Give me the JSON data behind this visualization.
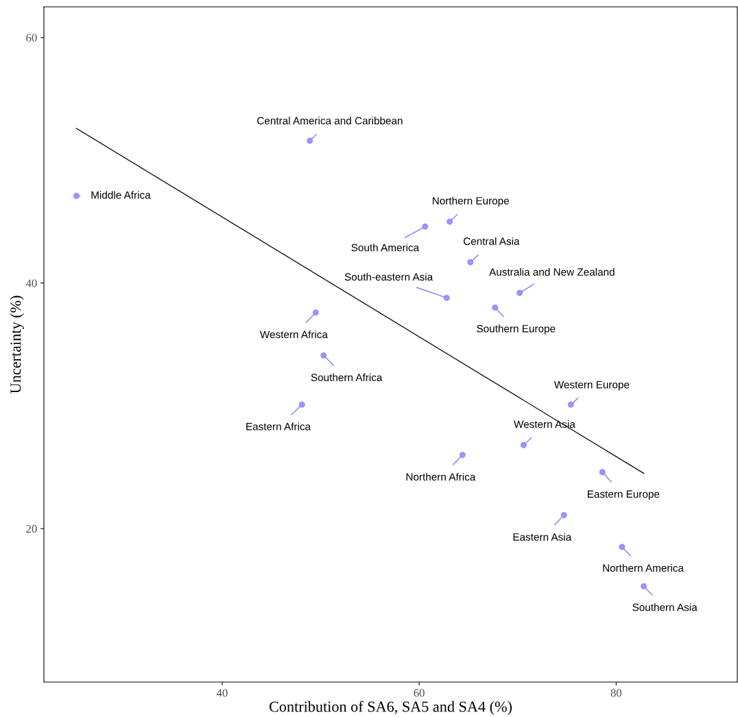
{
  "chart_data": {
    "type": "scatter",
    "xlabel": "Contribution of SA6, SA5 and SA4 (%)",
    "ylabel": "Uncertainty (%)",
    "xlim": [
      21.9,
      92.3
    ],
    "ylim": [
      7.5,
      62.5
    ],
    "xticks": [
      40,
      60,
      80
    ],
    "yticks": [
      20,
      40,
      60
    ],
    "grid": false,
    "legend": false,
    "marker": "circle",
    "series": [
      {
        "color": "#7f7fff",
        "x": [
          25.2,
          48.9,
          63.1,
          60.6,
          65.2,
          70.2,
          62.8,
          67.7,
          49.5,
          50.3,
          48.1,
          75.4,
          70.6,
          64.4,
          78.6,
          74.7,
          80.6,
          82.8
        ],
        "values": [
          47.1,
          51.6,
          45.0,
          44.6,
          41.7,
          39.2,
          38.8,
          38.0,
          37.6,
          34.1,
          30.1,
          30.1,
          26.8,
          26.0,
          24.6,
          21.1,
          18.5,
          15.3
        ]
      },
      {
        "type": "line",
        "marker": "none",
        "color": "#000000",
        "x": [
          25.2,
          82.8
        ],
        "values": [
          52.6,
          24.5
        ]
      }
    ],
    "annotations": [
      {
        "text": "Middle Africa",
        "x": 25.2,
        "y": 47.1
      },
      {
        "text": "Central America and Caribbean",
        "x": 48.9,
        "y": 51.6
      },
      {
        "text": "Northern Europe",
        "x": 63.1,
        "y": 45.0
      },
      {
        "text": "South America",
        "x": 60.6,
        "y": 44.6
      },
      {
        "text": "Central Asia",
        "x": 65.2,
        "y": 41.7
      },
      {
        "text": "Australia and New Zealand",
        "x": 70.2,
        "y": 39.2
      },
      {
        "text": "South-eastern Asia",
        "x": 62.8,
        "y": 38.8
      },
      {
        "text": "Southern Europe",
        "x": 67.7,
        "y": 38.0
      },
      {
        "text": "Western Africa",
        "x": 49.5,
        "y": 37.6
      },
      {
        "text": "Southern Africa",
        "x": 50.3,
        "y": 34.1
      },
      {
        "text": "Eastern Africa",
        "x": 48.1,
        "y": 30.1
      },
      {
        "text": "Western Europe",
        "x": 75.4,
        "y": 30.1
      },
      {
        "text": "Western Asia",
        "x": 70.6,
        "y": 26.8
      },
      {
        "text": "Northern Africa",
        "x": 64.4,
        "y": 26.0
      },
      {
        "text": "Eastern Europe",
        "x": 78.6,
        "y": 24.6
      },
      {
        "text": "Eastern Asia",
        "x": 74.7,
        "y": 21.1
      },
      {
        "text": "Northern America",
        "x": 80.6,
        "y": 18.5
      },
      {
        "text": "Southern Asia",
        "x": 82.8,
        "y": 15.3
      }
    ]
  }
}
